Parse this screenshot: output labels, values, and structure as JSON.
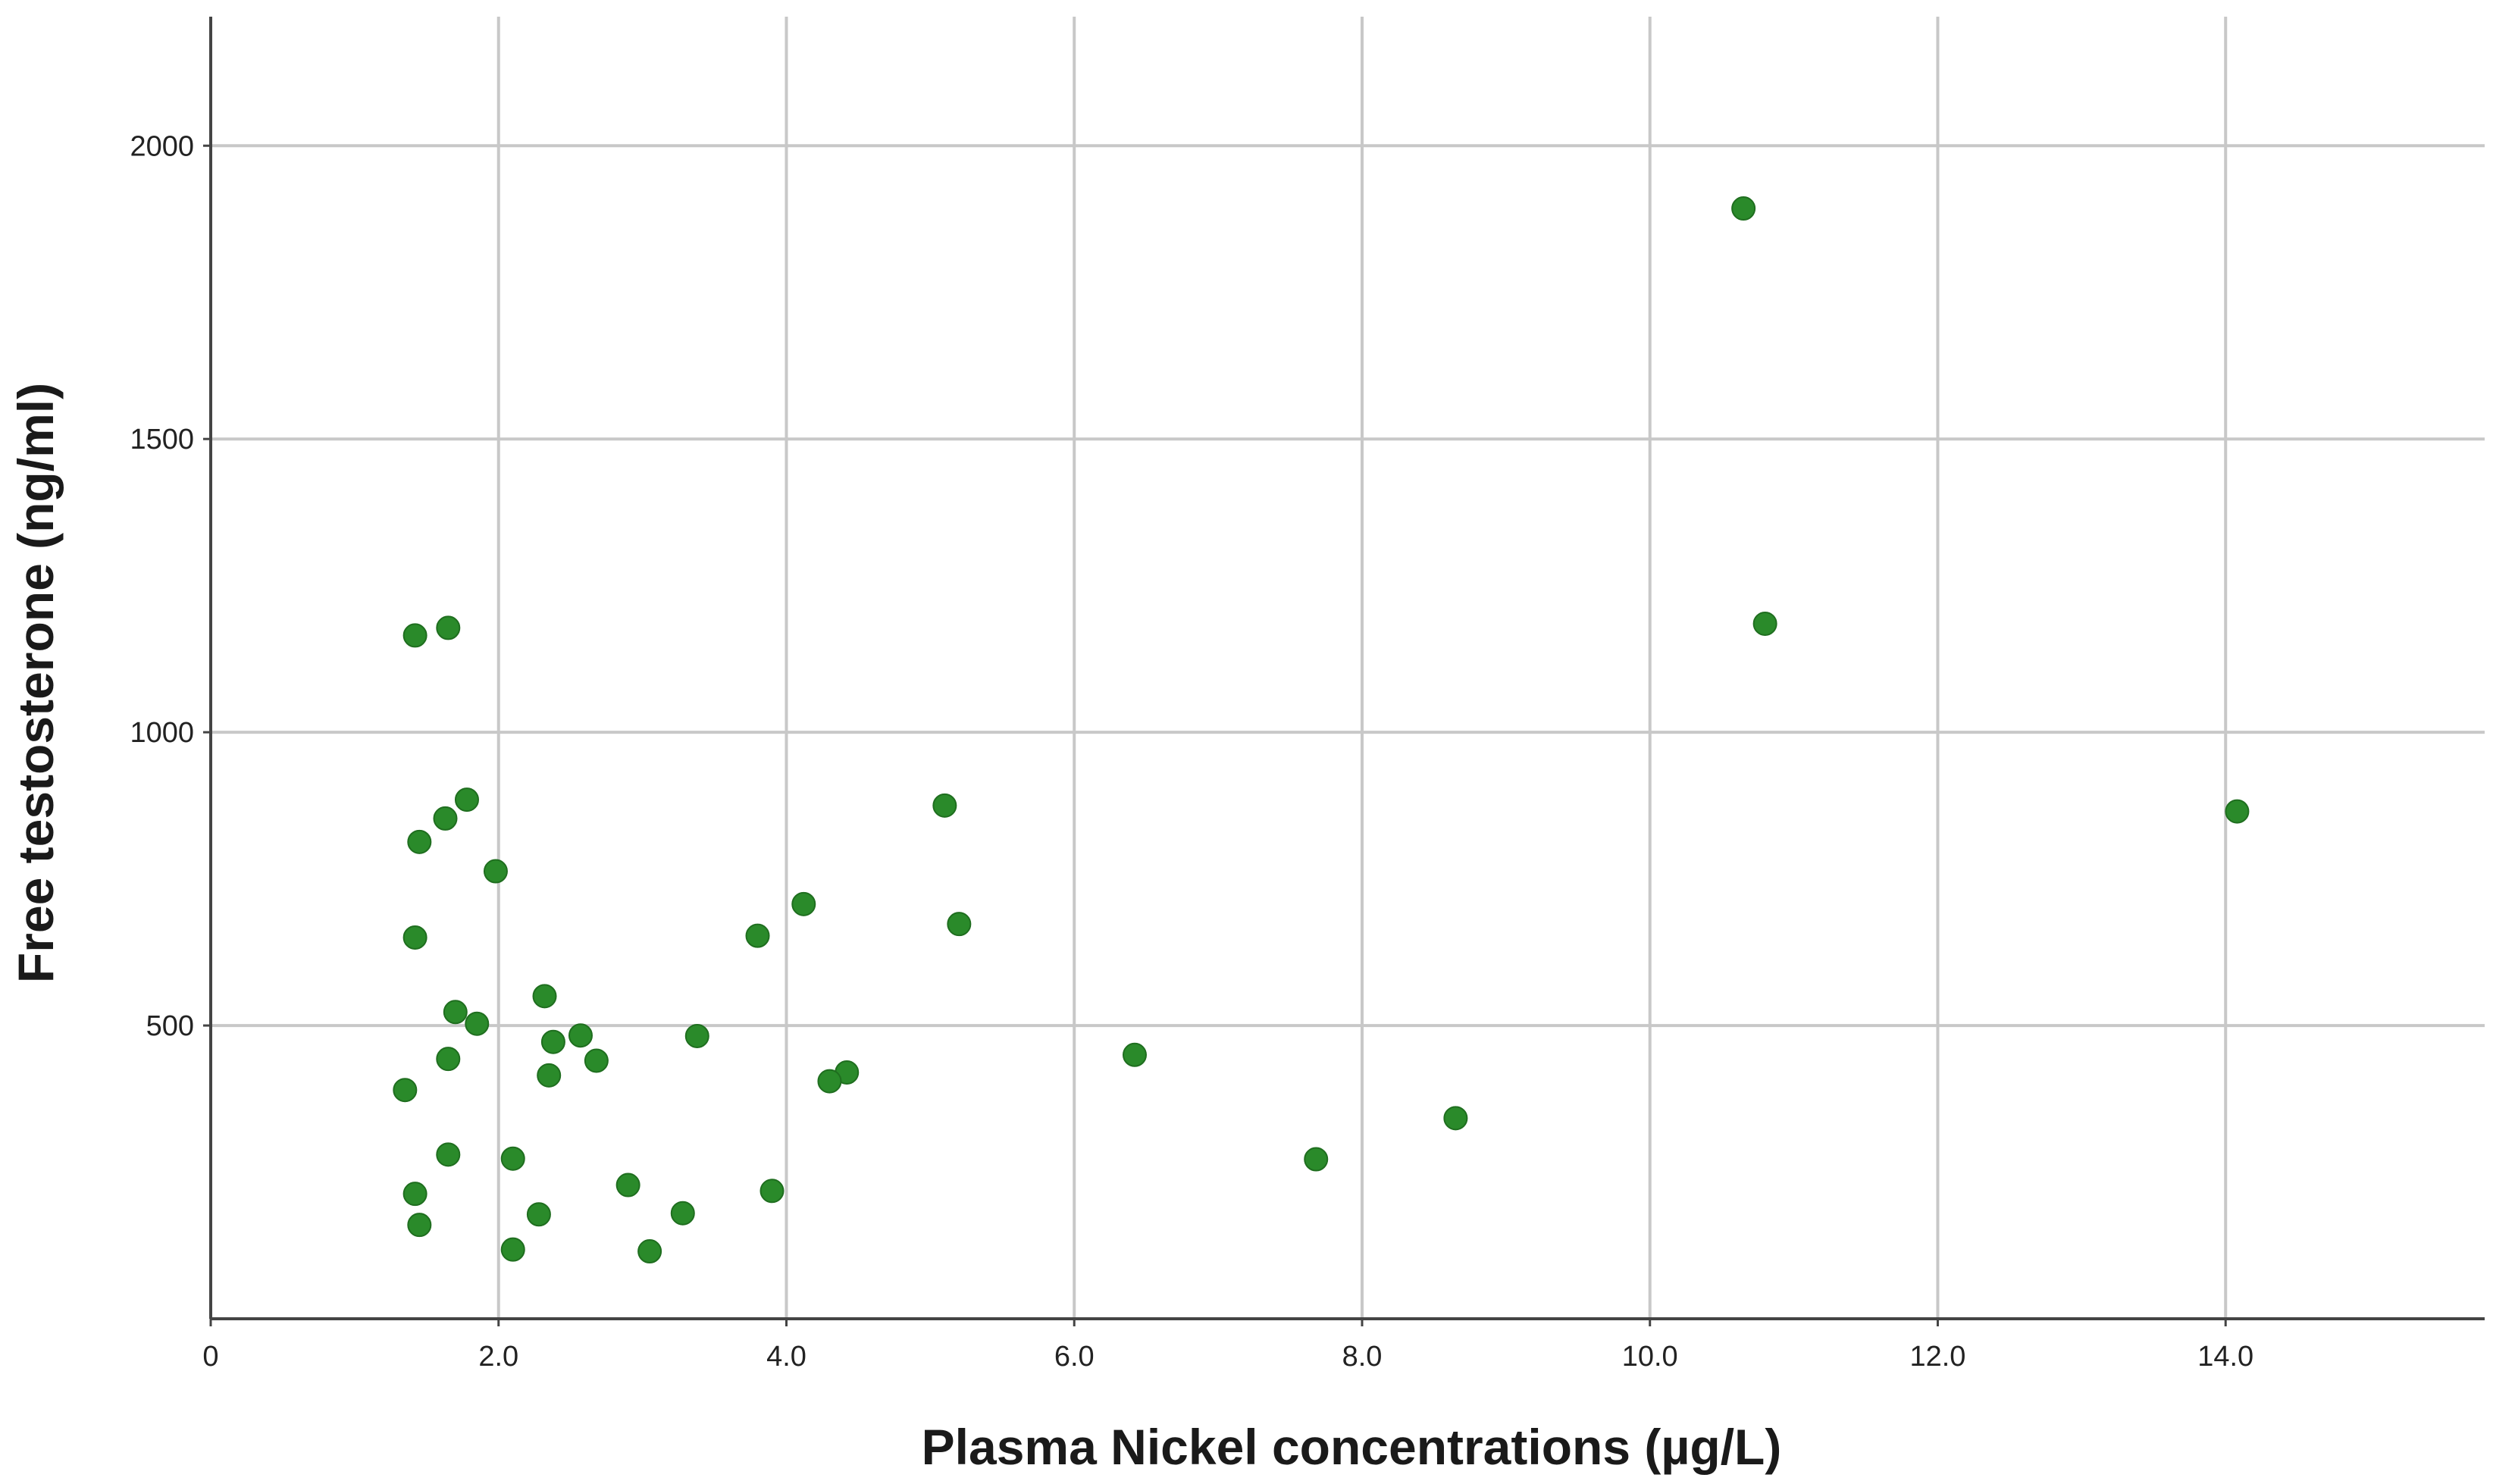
{
  "chart_data": {
    "type": "scatter",
    "xlabel": "Plasma Nickel concentrations (µg/L)",
    "ylabel": "Free testosterone (ng/ml)",
    "xlim": [
      0,
      15.8
    ],
    "ylim": [
      0,
      2220
    ],
    "x_ticks": [
      0,
      2,
      4,
      6,
      8,
      10,
      12,
      14
    ],
    "x_tick_labels": [
      "0",
      "2.0",
      "4.0",
      "6.0",
      "8.0",
      "10.0",
      "12.0",
      "14.0"
    ],
    "y_ticks": [
      500,
      1000,
      1500,
      2000
    ],
    "y_tick_labels": [
      "500",
      "1000",
      "1500",
      "2000"
    ],
    "grid": true,
    "marker_color": "#2a8a2a",
    "points": [
      {
        "x": 10.65,
        "y": 1893
      },
      {
        "x": 10.8,
        "y": 1185
      },
      {
        "x": 14.08,
        "y": 865
      },
      {
        "x": 1.42,
        "y": 1165
      },
      {
        "x": 1.65,
        "y": 1178
      },
      {
        "x": 1.78,
        "y": 885
      },
      {
        "x": 1.63,
        "y": 853
      },
      {
        "x": 1.45,
        "y": 813
      },
      {
        "x": 1.98,
        "y": 763
      },
      {
        "x": 1.42,
        "y": 650
      },
      {
        "x": 5.1,
        "y": 875
      },
      {
        "x": 4.12,
        "y": 707
      },
      {
        "x": 3.8,
        "y": 653
      },
      {
        "x": 5.2,
        "y": 673
      },
      {
        "x": 1.7,
        "y": 523
      },
      {
        "x": 1.85,
        "y": 503
      },
      {
        "x": 2.32,
        "y": 550
      },
      {
        "x": 2.57,
        "y": 483
      },
      {
        "x": 2.38,
        "y": 472
      },
      {
        "x": 3.38,
        "y": 482
      },
      {
        "x": 1.65,
        "y": 443
      },
      {
        "x": 2.68,
        "y": 440
      },
      {
        "x": 2.35,
        "y": 415
      },
      {
        "x": 4.42,
        "y": 420
      },
      {
        "x": 4.3,
        "y": 405
      },
      {
        "x": 6.42,
        "y": 450
      },
      {
        "x": 1.35,
        "y": 390
      },
      {
        "x": 8.65,
        "y": 342
      },
      {
        "x": 7.68,
        "y": 272
      },
      {
        "x": 1.65,
        "y": 280
      },
      {
        "x": 2.1,
        "y": 273
      },
      {
        "x": 1.42,
        "y": 213
      },
      {
        "x": 2.9,
        "y": 228
      },
      {
        "x": 3.9,
        "y": 218
      },
      {
        "x": 2.28,
        "y": 178
      },
      {
        "x": 3.28,
        "y": 180
      },
      {
        "x": 1.45,
        "y": 160
      },
      {
        "x": 2.1,
        "y": 118
      },
      {
        "x": 3.05,
        "y": 115
      }
    ]
  }
}
